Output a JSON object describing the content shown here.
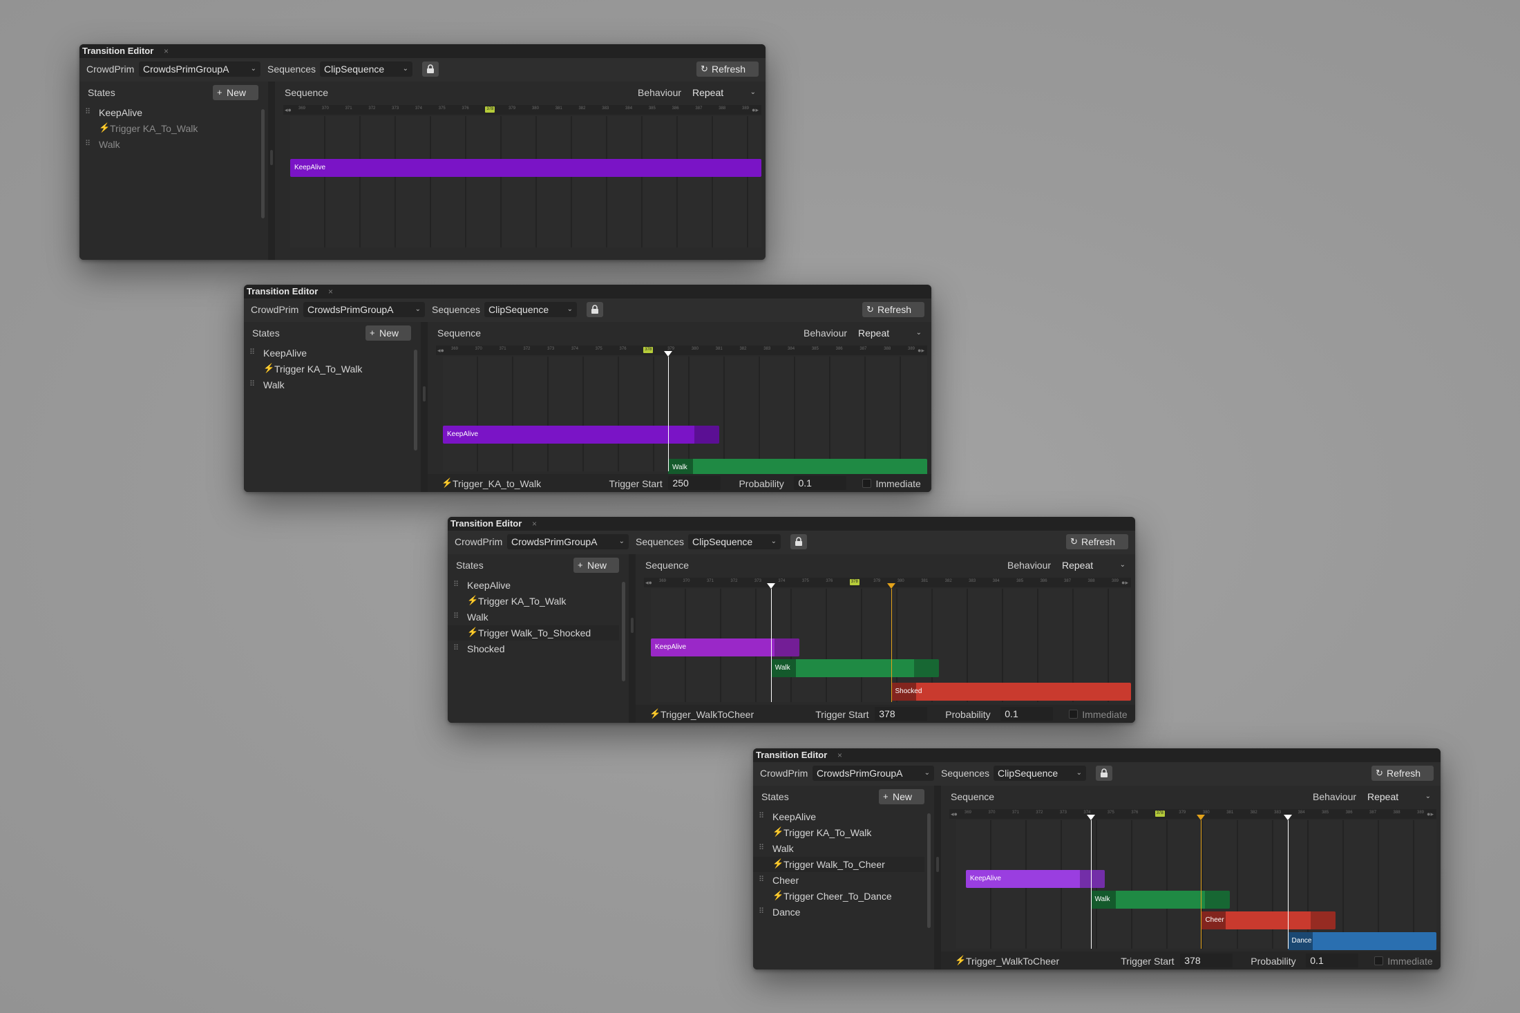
{
  "common": {
    "title": "Transition Editor",
    "close": "×",
    "crowdprim_label": "CrowdPrim",
    "crowdprim_value": "CrowdsPrimGroupA",
    "sequences_label": "Sequences",
    "sequences_value": "ClipSequence",
    "refresh_label": "Refresh",
    "states_label": "States",
    "new_label": "New",
    "sequence_label": "Sequence",
    "behaviour_label": "Behaviour",
    "behaviour_value": "Repeat",
    "trigger_start_label": "Trigger Start",
    "probability_label": "Probability",
    "probability_value": "0.1",
    "immediate_label": "Immediate",
    "chevron": "⌄",
    "refresh_icon": "↻",
    "plus_icon": "+",
    "bolt_icon": "⚡",
    "handle_icon": "⠿"
  },
  "ruler_ticks": [
    "369",
    "370",
    "371",
    "372",
    "373",
    "374",
    "375",
    "376",
    "378",
    "379",
    "380",
    "381",
    "382",
    "383",
    "384",
    "385",
    "386",
    "387",
    "388",
    "389"
  ],
  "ruler_highlight": "378",
  "windows": [
    {
      "states": [
        {
          "label": "KeepAlive",
          "kind": "state"
        },
        {
          "label": "Trigger KA_To_Walk",
          "kind": "trigger",
          "dim": true
        },
        {
          "label": "Walk",
          "kind": "state",
          "dim": true
        }
      ],
      "clips": [
        {
          "label": "KeepAlive",
          "color": "#7a14c6"
        }
      ],
      "footer": null
    },
    {
      "states": [
        {
          "label": "KeepAlive",
          "kind": "state"
        },
        {
          "label": "Trigger KA_To_Walk",
          "kind": "trigger"
        },
        {
          "label": "Walk",
          "kind": "state"
        }
      ],
      "clips": [
        {
          "label": "KeepAlive",
          "color": "#7a14c6"
        },
        {
          "label": "Walk",
          "color": "#1f8a44"
        }
      ],
      "footer": {
        "trigger": "Trigger_KA_to_Walk",
        "trigger_start": "250"
      }
    },
    {
      "states": [
        {
          "label": "KeepAlive",
          "kind": "state"
        },
        {
          "label": "Trigger KA_To_Walk",
          "kind": "trigger"
        },
        {
          "label": "Walk",
          "kind": "state"
        },
        {
          "label": "Trigger Walk_To_Shocked",
          "kind": "trigger",
          "selected": true
        },
        {
          "label": "Shocked",
          "kind": "state"
        }
      ],
      "clips": [
        {
          "label": "KeepAlive",
          "color": "#9a28c8"
        },
        {
          "label": "Walk",
          "color": "#1f8a44"
        },
        {
          "label": "Shocked",
          "color": "#c93a2e"
        }
      ],
      "footer": {
        "trigger": "Trigger_WalkToCheer",
        "trigger_start": "378"
      }
    },
    {
      "states": [
        {
          "label": "KeepAlive",
          "kind": "state"
        },
        {
          "label": "Trigger KA_To_Walk",
          "kind": "trigger"
        },
        {
          "label": "Walk",
          "kind": "state"
        },
        {
          "label": "Trigger Walk_To_Cheer",
          "kind": "trigger",
          "selected": true
        },
        {
          "label": "Cheer",
          "kind": "state"
        },
        {
          "label": "Trigger Cheer_To_Dance",
          "kind": "trigger"
        },
        {
          "label": "Dance",
          "kind": "state"
        }
      ],
      "clips": [
        {
          "label": "KeepAlive",
          "color": "#9a3ee0"
        },
        {
          "label": "Walk",
          "color": "#1f8a44"
        },
        {
          "label": "Cheer",
          "color": "#c93a2e"
        },
        {
          "label": "Dance",
          "color": "#2a6fb0"
        }
      ],
      "footer": {
        "trigger": "Trigger_WalkToCheer",
        "trigger_start": "378"
      }
    }
  ]
}
